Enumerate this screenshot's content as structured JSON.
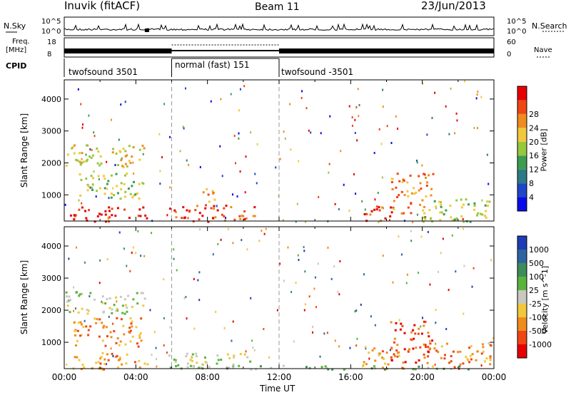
{
  "header": {
    "title": "Inuvik (fitACF)",
    "beam": "Beam 11",
    "date": "23/Jun/2013"
  },
  "strip_labels": {
    "nsky": "N.Sky",
    "nsearch": "N.Search",
    "freq_l1": "Freq.",
    "freq_l2": "[MHz]",
    "nave": "Nave",
    "cpid": "CPID",
    "noise_top": "10^5",
    "noise_bot": "10^0",
    "freq_top": "18",
    "freq_bot": "8",
    "nave_top": "60",
    "nave_bot": "0"
  },
  "cpid_segments": [
    {
      "label": "twofsound 3501",
      "start": 0,
      "end": 6
    },
    {
      "label": "normal (fast) 151",
      "start": 6,
      "end": 12
    },
    {
      "label": "twofsound -3501",
      "start": 12,
      "end": 24
    }
  ],
  "chart_data": [
    {
      "type": "heatmap",
      "quantity": "Power",
      "ylabel": "Slant Range [km]",
      "xlabel": "",
      "xlim": [
        0,
        24
      ],
      "ylim": [
        180,
        4600
      ],
      "yticks": [
        1000,
        2000,
        3000,
        4000
      ],
      "colorbar_label": "Power [dB]",
      "colorbar_ticks": [
        "4",
        "8",
        "12",
        "16",
        "20",
        "24",
        "28"
      ],
      "colors": [
        "#0a0ae8",
        "#1e46c8",
        "#2e7a84",
        "#3c9c50",
        "#96c83c",
        "#f0c83c",
        "#f08c1e",
        "#f04614",
        "#e60000"
      ],
      "patches": [
        {
          "t0": 0.3,
          "t1": 4.6,
          "r0": 180,
          "r1": 650,
          "level": 8
        },
        {
          "t0": 0.8,
          "t1": 4.4,
          "r0": 900,
          "r1": 1700,
          "level": 4
        },
        {
          "t0": 0.0,
          "t1": 4.5,
          "r0": 1900,
          "r1": 2600,
          "level": 5
        },
        {
          "t0": 5.8,
          "t1": 10.8,
          "r0": 180,
          "r1": 700,
          "level": 7
        },
        {
          "t0": 7.6,
          "t1": 8.4,
          "r0": 600,
          "r1": 1300,
          "level": 6
        },
        {
          "t0": 16.6,
          "t1": 18.4,
          "r0": 180,
          "r1": 700,
          "level": 7
        },
        {
          "t0": 18.2,
          "t1": 20.6,
          "r0": 450,
          "r1": 1700,
          "level": 6
        },
        {
          "t0": 19.8,
          "t1": 23.8,
          "r0": 180,
          "r1": 900,
          "level": 4
        }
      ]
    },
    {
      "type": "heatmap",
      "quantity": "Velocity",
      "ylabel": "Slant Range [km]",
      "xlabel": "Time UT",
      "xlim": [
        0,
        24
      ],
      "ylim": [
        180,
        4600
      ],
      "yticks": [
        1000,
        2000,
        3000,
        4000
      ],
      "xticks": [
        "00:00",
        "04:00",
        "08:00",
        "12:00",
        "16:00",
        "20:00",
        "00:00"
      ],
      "colorbar_label": "Velocity [m s^-1]",
      "colorbar_ticks": [
        "1000",
        "500",
        "100",
        "25",
        "-25",
        "-100",
        "-500",
        "-1000"
      ],
      "colors": [
        "#1e3cb4",
        "#2e64a0",
        "#3c8c5a",
        "#5ab43c",
        "#c8c8c0",
        "#f0c83c",
        "#f08c1e",
        "#f04614",
        "#e60000"
      ],
      "patches": [
        {
          "t0": 0.3,
          "t1": 4.6,
          "r0": 180,
          "r1": 700,
          "level": 6
        },
        {
          "t0": 0.5,
          "t1": 4.4,
          "r0": 900,
          "r1": 1800,
          "level": 6
        },
        {
          "t0": 0.0,
          "t1": 4.5,
          "r0": 1900,
          "r1": 2600,
          "level": 4
        },
        {
          "t0": 5.8,
          "t1": 10.5,
          "r0": 180,
          "r1": 700,
          "level": 4
        },
        {
          "t0": 6.0,
          "t1": 24.0,
          "r0": 180,
          "r1": 300,
          "level": 3
        },
        {
          "t0": 16.6,
          "t1": 19.0,
          "r0": 200,
          "r1": 900,
          "level": 6
        },
        {
          "t0": 18.2,
          "t1": 20.5,
          "r0": 400,
          "r1": 1700,
          "level": 7
        },
        {
          "t0": 20.0,
          "t1": 23.8,
          "r0": 250,
          "r1": 1000,
          "level": 6
        }
      ]
    }
  ]
}
